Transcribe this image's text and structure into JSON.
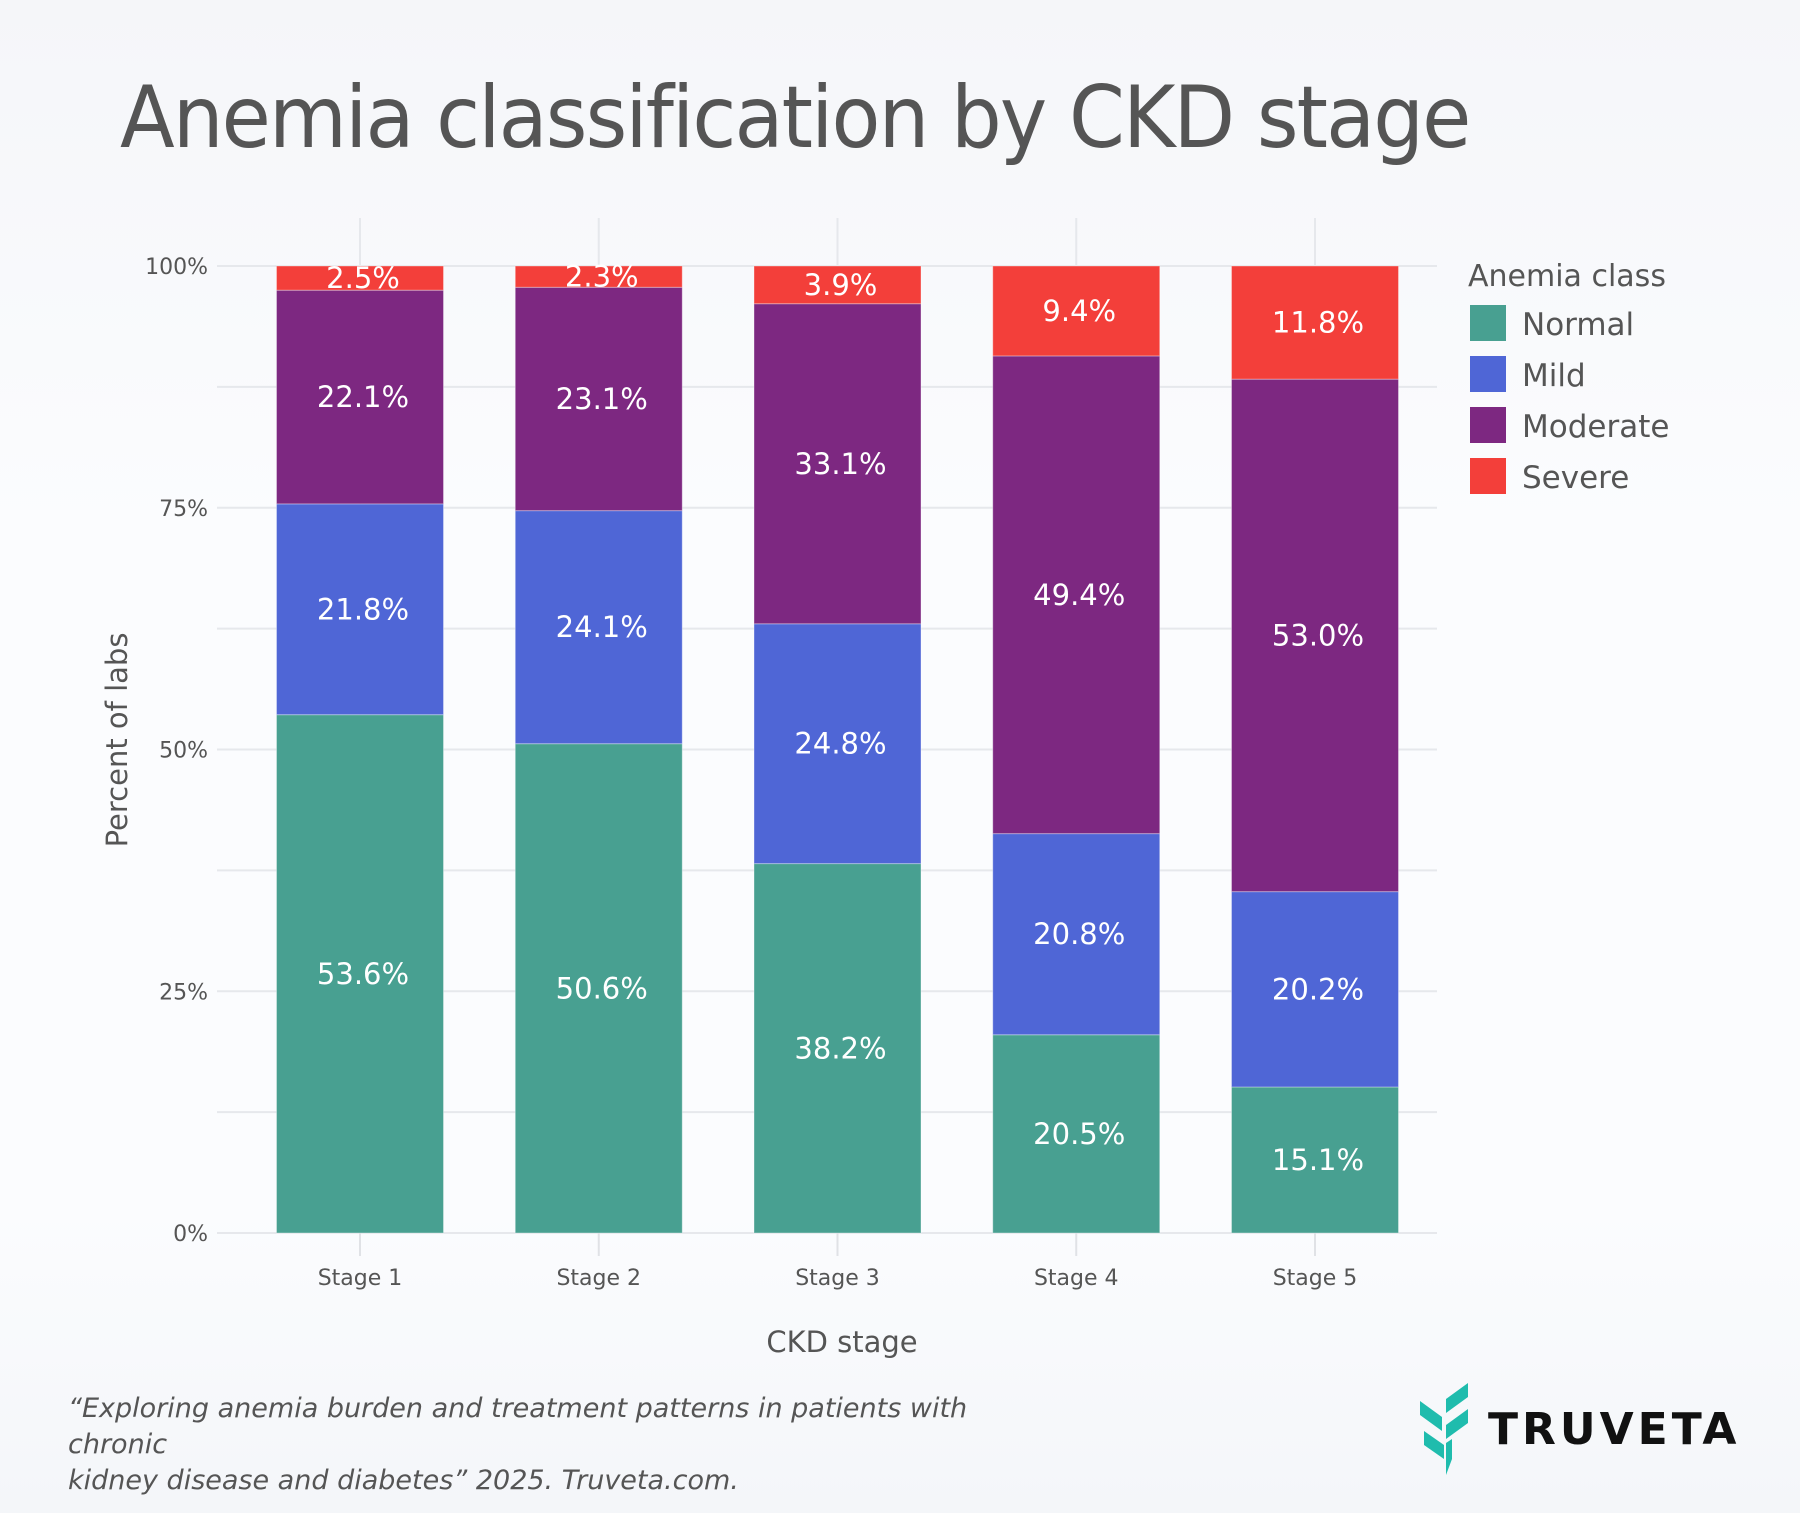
{
  "title": "Anemia classification by CKD stage",
  "footer": {
    "citation_line1": "“Exploring anemia burden and treatment patterns in patients with chronic",
    "citation_line2": "kidney disease and diabetes” 2025. Truveta.com."
  },
  "logo": {
    "text": "TRUVETA",
    "icon": "truveta-leaf-icon",
    "color": "#1fbcad"
  },
  "chart_data": {
    "type": "bar",
    "stacked": true,
    "title": "Anemia classification by CKD stage",
    "xlabel": "CKD stage",
    "ylabel": "Percent of labs",
    "ylim": [
      0,
      100
    ],
    "yticks": [
      0,
      25,
      50,
      75,
      100
    ],
    "ytick_labels": [
      "0%",
      "25%",
      "50%",
      "75%",
      "100%"
    ],
    "grid": true,
    "categories": [
      "Stage 1",
      "Stage 2",
      "Stage 3",
      "Stage 4",
      "Stage 5"
    ],
    "legend": {
      "title": "Anemia class",
      "placement": "top-right"
    },
    "series": [
      {
        "name": "Normal",
        "color": "#48a091",
        "values": [
          53.6,
          50.6,
          38.2,
          20.5,
          15.1
        ],
        "labels": [
          "53.6%",
          "50.6%",
          "38.2%",
          "20.5%",
          "15.1%"
        ]
      },
      {
        "name": "Mild",
        "color": "#4f66d6",
        "values": [
          21.8,
          24.1,
          24.8,
          20.8,
          20.2
        ],
        "labels": [
          "21.8%",
          "24.1%",
          "24.8%",
          "20.8%",
          "20.2%"
        ]
      },
      {
        "name": "Moderate",
        "color": "#7d2881",
        "values": [
          22.1,
          23.1,
          33.1,
          49.4,
          53.0
        ],
        "labels": [
          "22.1%",
          "23.1%",
          "33.1%",
          "49.4%",
          "53.0%"
        ]
      },
      {
        "name": "Severe",
        "color": "#f33f3a",
        "values": [
          2.5,
          2.3,
          3.9,
          9.4,
          11.8
        ],
        "labels": [
          "2.5%",
          "2.3%",
          "3.9%",
          "9.4%",
          "11.8%"
        ]
      }
    ]
  }
}
